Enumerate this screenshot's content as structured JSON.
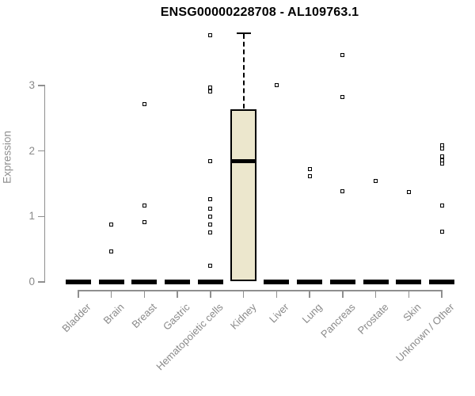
{
  "title": "ENSG00000228708 - AL109763.1",
  "y_axis": {
    "label": "Expression",
    "tick_labels": [
      "0",
      "1",
      "2",
      "3"
    ]
  },
  "colors": {
    "box_fill": "#ECE7CD",
    "box_border": "#000000",
    "axis_gray": "#8F8F8F",
    "text_gray": "#8A8A8A",
    "title_color": "#000000",
    "background": "#FFFFFF"
  },
  "chart_data": {
    "type": "boxplot",
    "title": "ENSG00000228708 - AL109763.1",
    "xlabel": "",
    "ylabel": "Expression",
    "ylim": [
      0,
      3.9
    ],
    "yticks": [
      0,
      1,
      2,
      3
    ],
    "grid": false,
    "legend": false,
    "categories": [
      "Bladder",
      "Brain",
      "Breast",
      "Gastric",
      "Hematopoietic cells",
      "Kidney",
      "Liver",
      "Lung",
      "Pancreas",
      "Prostate",
      "Skin",
      "Unknown / Other"
    ],
    "series": [
      {
        "name": "Bladder",
        "box": {
          "q1": 0,
          "median": 0,
          "q3": 0,
          "whisker_low": 0,
          "whisker_high": 0
        },
        "outliers": []
      },
      {
        "name": "Brain",
        "box": {
          "q1": 0,
          "median": 0,
          "q3": 0,
          "whisker_low": 0,
          "whisker_high": 0
        },
        "outliers": [
          0.88,
          0.46
        ]
      },
      {
        "name": "Breast",
        "box": {
          "q1": 0,
          "median": 0,
          "q3": 0,
          "whisker_low": 0,
          "whisker_high": 0
        },
        "outliers": [
          2.72,
          1.17,
          0.91
        ]
      },
      {
        "name": "Gastric",
        "box": {
          "q1": 0,
          "median": 0,
          "q3": 0,
          "whisker_low": 0,
          "whisker_high": 0
        },
        "outliers": []
      },
      {
        "name": "Hematopoietic cells",
        "box": {
          "q1": 0,
          "median": 0,
          "q3": 0,
          "whisker_low": 0,
          "whisker_high": 0
        },
        "outliers": [
          3.77,
          2.97,
          2.91,
          1.85,
          1.27,
          1.12,
          1.0,
          0.88,
          0.76,
          0.25
        ]
      },
      {
        "name": "Kidney",
        "box": {
          "q1": 0.01,
          "median": 1.85,
          "q3": 2.64,
          "whisker_low": 0.01,
          "whisker_high": 3.8
        },
        "outliers": []
      },
      {
        "name": "Liver",
        "box": {
          "q1": 0,
          "median": 0,
          "q3": 0,
          "whisker_low": 0,
          "whisker_high": 0
        },
        "outliers": [
          3.0
        ]
      },
      {
        "name": "Lung",
        "box": {
          "q1": 0,
          "median": 0,
          "q3": 0,
          "whisker_low": 0,
          "whisker_high": 0
        },
        "outliers": [
          1.72,
          1.61
        ]
      },
      {
        "name": "Pancreas",
        "box": {
          "q1": 0,
          "median": 0,
          "q3": 0,
          "whisker_low": 0,
          "whisker_high": 0
        },
        "outliers": [
          3.46,
          2.82,
          1.39
        ]
      },
      {
        "name": "Prostate",
        "box": {
          "q1": 0,
          "median": 0,
          "q3": 0,
          "whisker_low": 0,
          "whisker_high": 0
        },
        "outliers": [
          1.54
        ]
      },
      {
        "name": "Skin",
        "box": {
          "q1": 0,
          "median": 0,
          "q3": 0,
          "whisker_low": 0,
          "whisker_high": 0
        },
        "outliers": [
          1.37
        ]
      },
      {
        "name": "Unknown / Other",
        "box": {
          "q1": 0,
          "median": 0,
          "q3": 0,
          "whisker_low": 0,
          "whisker_high": 0
        },
        "outliers": [
          2.09,
          2.04,
          1.92,
          1.86,
          1.81,
          1.17,
          0.77
        ]
      }
    ]
  }
}
